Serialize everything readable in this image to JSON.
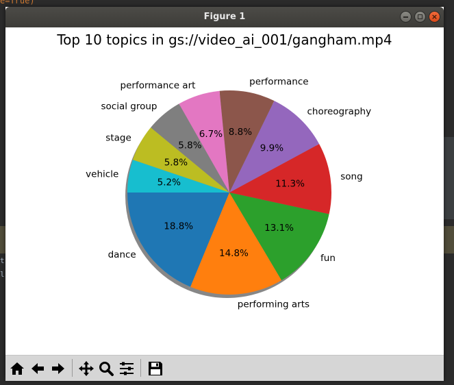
{
  "window": {
    "title": "Figure 1"
  },
  "background": {
    "code_fragment": "e=True)",
    "gutter_letters": [
      "t",
      "l"
    ]
  },
  "chart_data": {
    "type": "pie",
    "title": "Top 10 topics in gs://video_ai_001/gangham.mp4",
    "startangle_deg": 180,
    "shadow": true,
    "slices": [
      {
        "label": "dance",
        "value": 18.8,
        "pct_label": "18.8%",
        "color": "#1f77b4"
      },
      {
        "label": "performing arts",
        "value": 14.8,
        "pct_label": "14.8%",
        "color": "#ff7f0e"
      },
      {
        "label": "fun",
        "value": 13.1,
        "pct_label": "13.1%",
        "color": "#2ca02c"
      },
      {
        "label": "song",
        "value": 11.3,
        "pct_label": "11.3%",
        "color": "#d62728"
      },
      {
        "label": "choreography",
        "value": 9.9,
        "pct_label": "9.9%",
        "color": "#9467bd"
      },
      {
        "label": "performance",
        "value": 8.8,
        "pct_label": "8.8%",
        "color": "#8c564b"
      },
      {
        "label": "performance art",
        "value": 6.7,
        "pct_label": "6.7%",
        "color": "#e377c2"
      },
      {
        "label": "social group",
        "value": 5.8,
        "pct_label": "5.8%",
        "color": "#7f7f7f"
      },
      {
        "label": "stage",
        "value": 5.8,
        "pct_label": "5.8%",
        "color": "#bcbd22"
      },
      {
        "label": "vehicle",
        "value": 5.2,
        "pct_label": "5.2%",
        "color": "#17becf"
      }
    ]
  },
  "toolbar": {
    "tools": [
      {
        "name": "home-icon"
      },
      {
        "name": "back-arrow-icon"
      },
      {
        "name": "forward-arrow-icon"
      },
      {
        "name": "pan-icon"
      },
      {
        "name": "zoom-icon"
      },
      {
        "name": "configure-subplots-icon"
      },
      {
        "name": "save-icon"
      }
    ]
  }
}
